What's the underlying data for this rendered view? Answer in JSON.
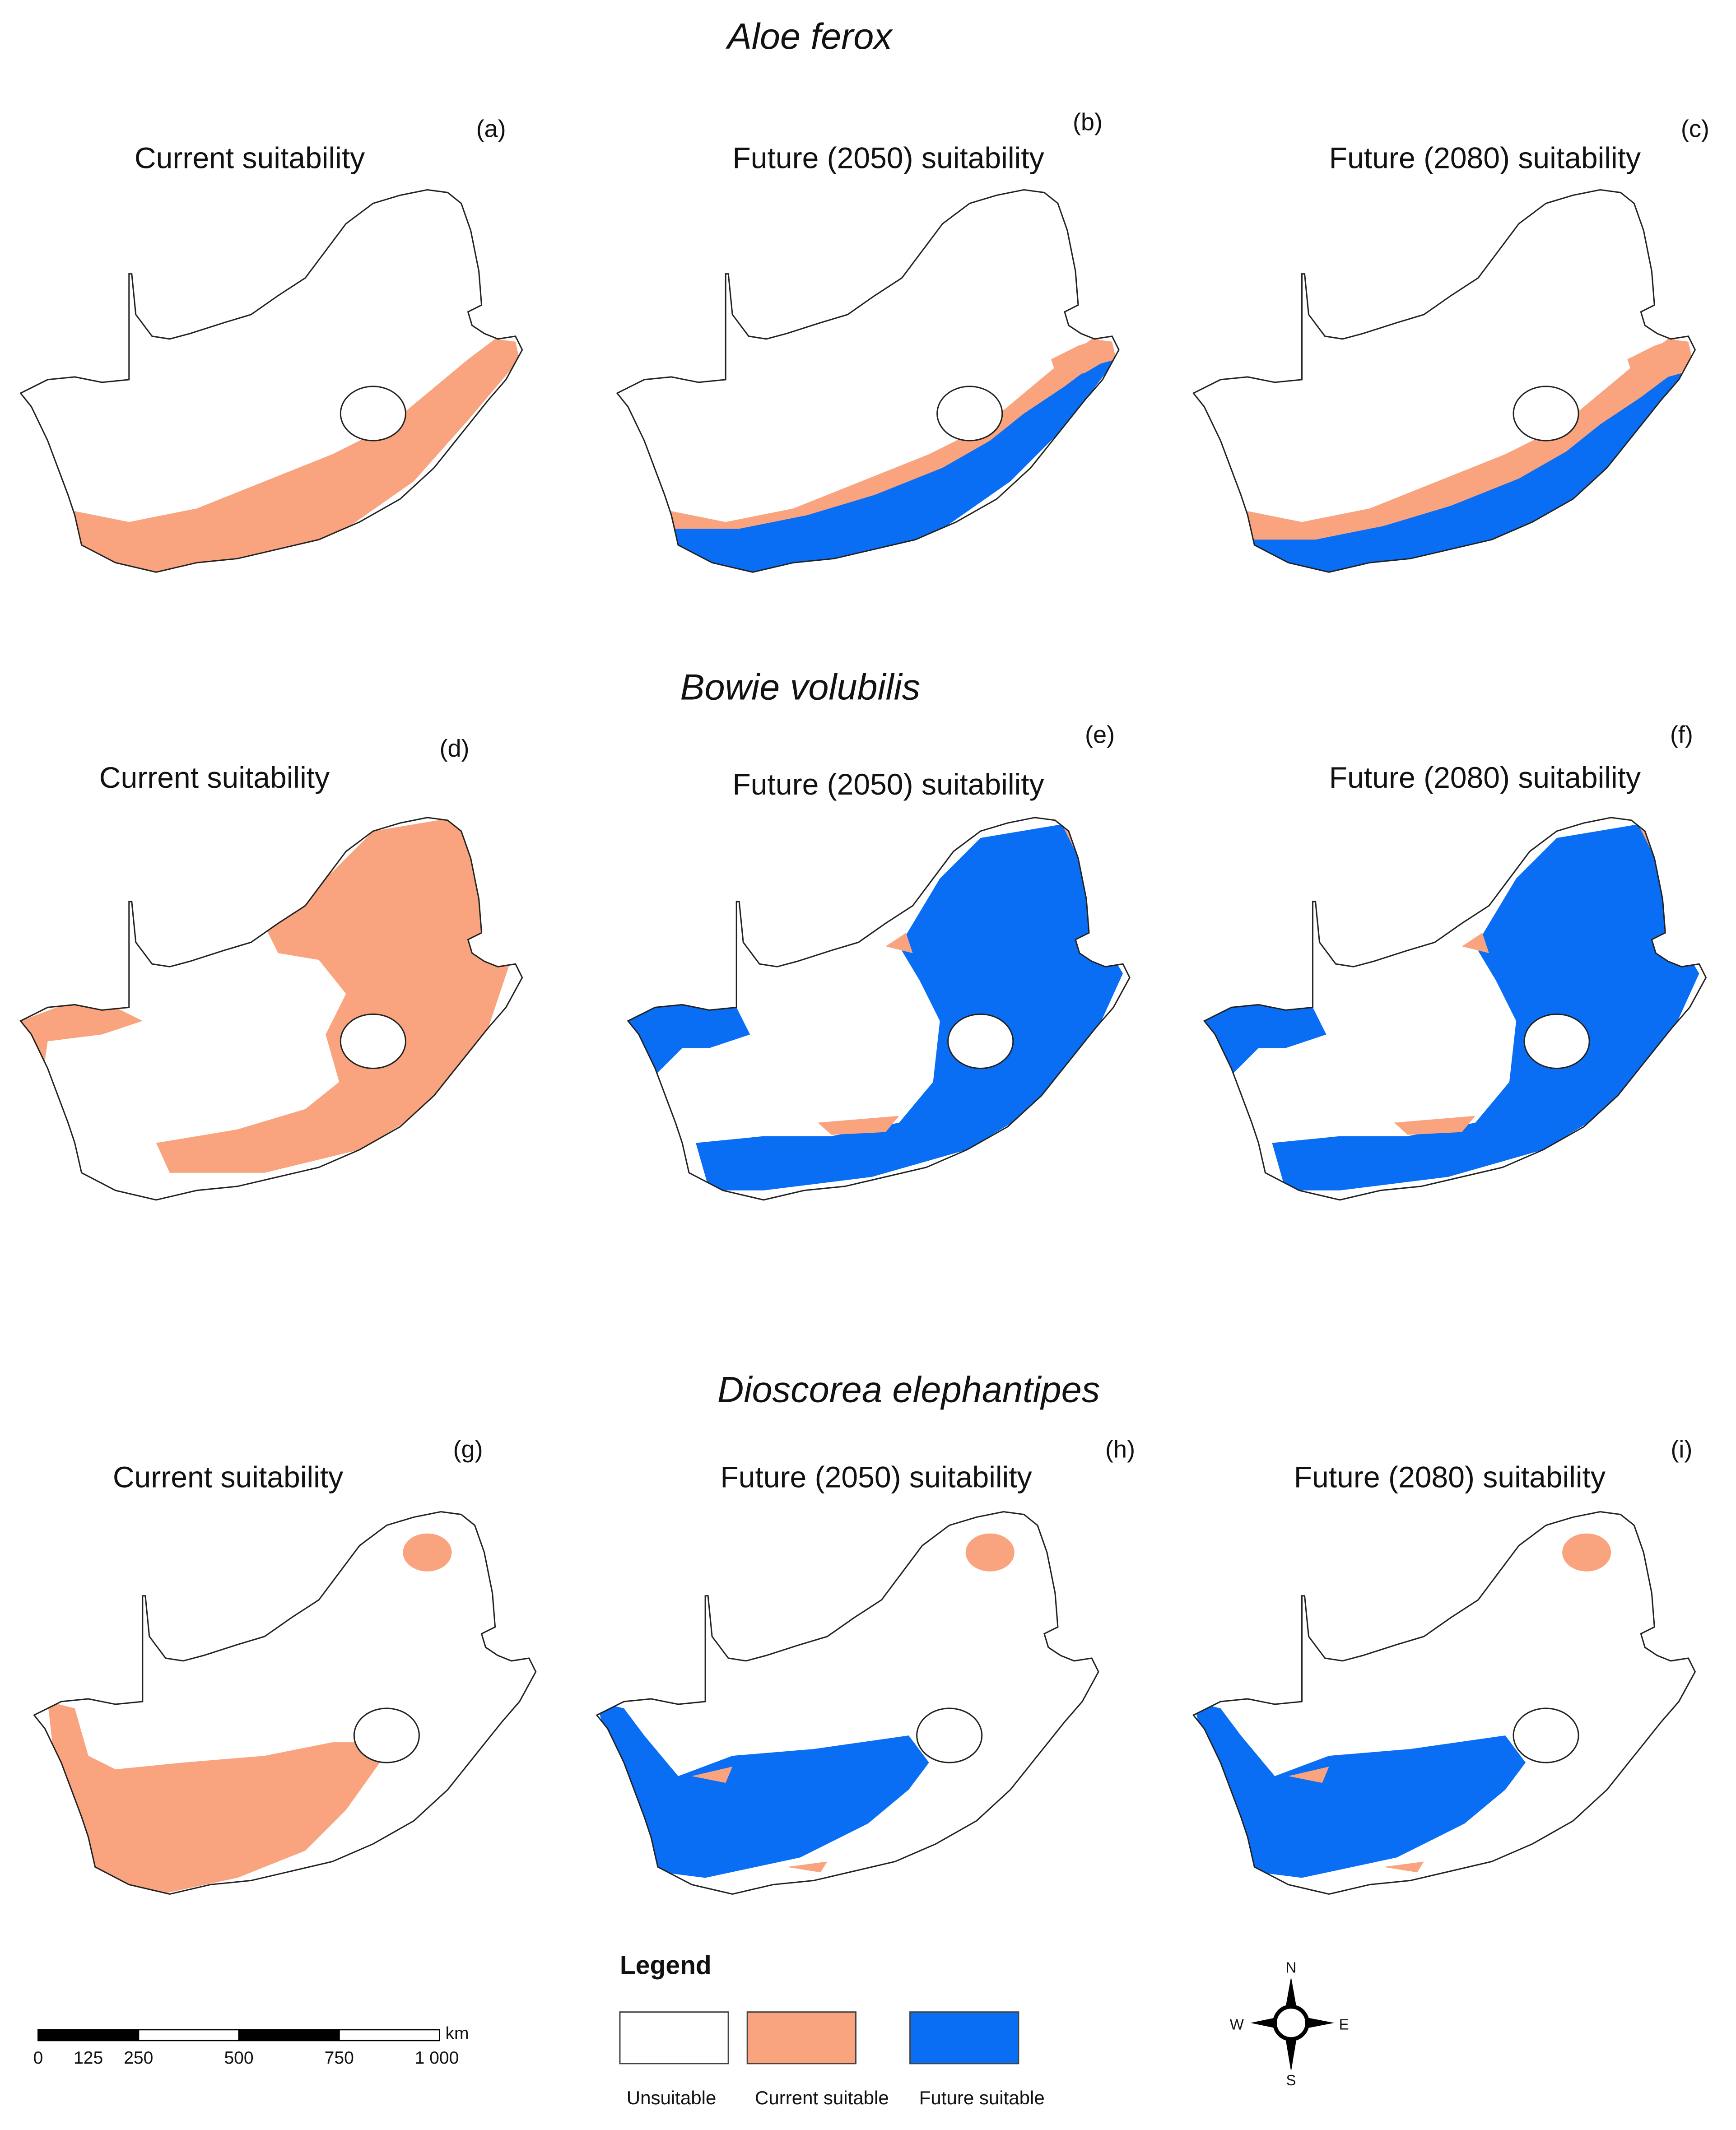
{
  "species": [
    {
      "name": "Aloe ferox",
      "panels": [
        {
          "label": "(a)",
          "title": "Current suitability"
        },
        {
          "label": "(b)",
          "title": "Future (2050) suitability"
        },
        {
          "label": "(c)",
          "title": "Future (2080) suitability"
        }
      ]
    },
    {
      "name": "Bowie volubilis",
      "panels": [
        {
          "label": "(d)",
          "title": "Current suitability"
        },
        {
          "label": "(e)",
          "title": "Future (2050) suitability"
        },
        {
          "label": "(f)",
          "title": "Future (2080) suitability"
        }
      ]
    },
    {
      "name": "Dioscorea elephantipes",
      "panels": [
        {
          "label": "(g)",
          "title": "Current suitability"
        },
        {
          "label": "(h)",
          "title": "Future (2050) suitability"
        },
        {
          "label": "(i)",
          "title": "Future (2080) suitability"
        }
      ]
    }
  ],
  "legend": {
    "title": "Legend",
    "items": [
      "Unsuitable",
      "Current suitable",
      "Future suitable"
    ]
  },
  "scale_bar": {
    "unit": "km",
    "ticks": [
      "0",
      "125",
      "250",
      "500",
      "750",
      "1 000"
    ]
  },
  "compass": {
    "north": "N",
    "east": "E",
    "south": "S",
    "west": "W"
  }
}
